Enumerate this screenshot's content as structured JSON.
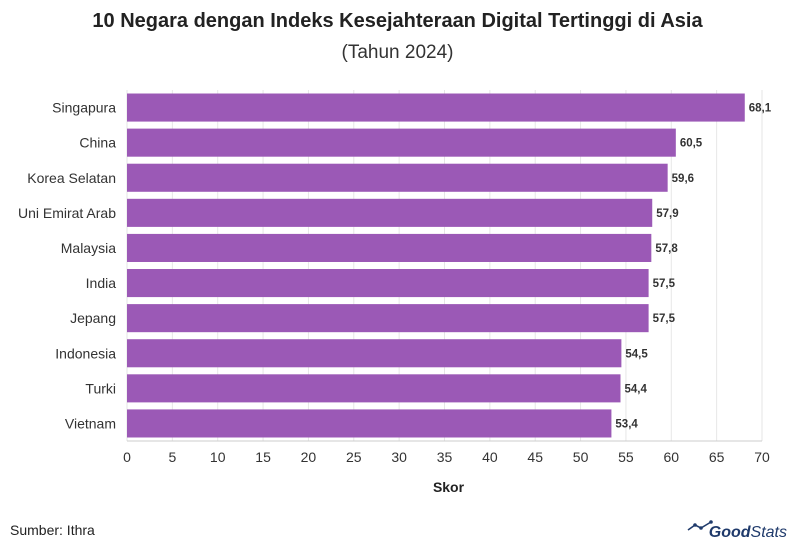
{
  "title": "10 Negara dengan Indeks Kesejahteraan Digital Tertinggi di Asia",
  "subtitle": "(Tahun 2024)",
  "source": "Sumber: Ithra",
  "brand": {
    "part1": "Good",
    "part2": "Stats",
    "icon": "trend-line-icon"
  },
  "colors": {
    "bar": "#9b59b6",
    "grid": "#e6e6e6",
    "axis": "#cccccc",
    "text": "#333333"
  },
  "chart_data": {
    "type": "bar",
    "orientation": "horizontal",
    "categories": [
      "Singapura",
      "China",
      "Korea Selatan",
      "Uni Emirat Arab",
      "Malaysia",
      "India",
      "Jepang",
      "Indonesia",
      "Turki",
      "Vietnam"
    ],
    "values": [
      68.1,
      60.5,
      59.6,
      57.9,
      57.8,
      57.5,
      57.5,
      54.5,
      54.4,
      53.4
    ],
    "value_labels": [
      "68,1",
      "60,5",
      "59,6",
      "57,9",
      "57,8",
      "57,5",
      "57,5",
      "54,5",
      "54,4",
      "53,4"
    ],
    "xlabel": "Skor",
    "xlim": [
      0,
      70
    ],
    "xticks": [
      0,
      5,
      10,
      15,
      20,
      25,
      30,
      35,
      40,
      45,
      50,
      55,
      60,
      65,
      70
    ],
    "grid": "vertical"
  }
}
